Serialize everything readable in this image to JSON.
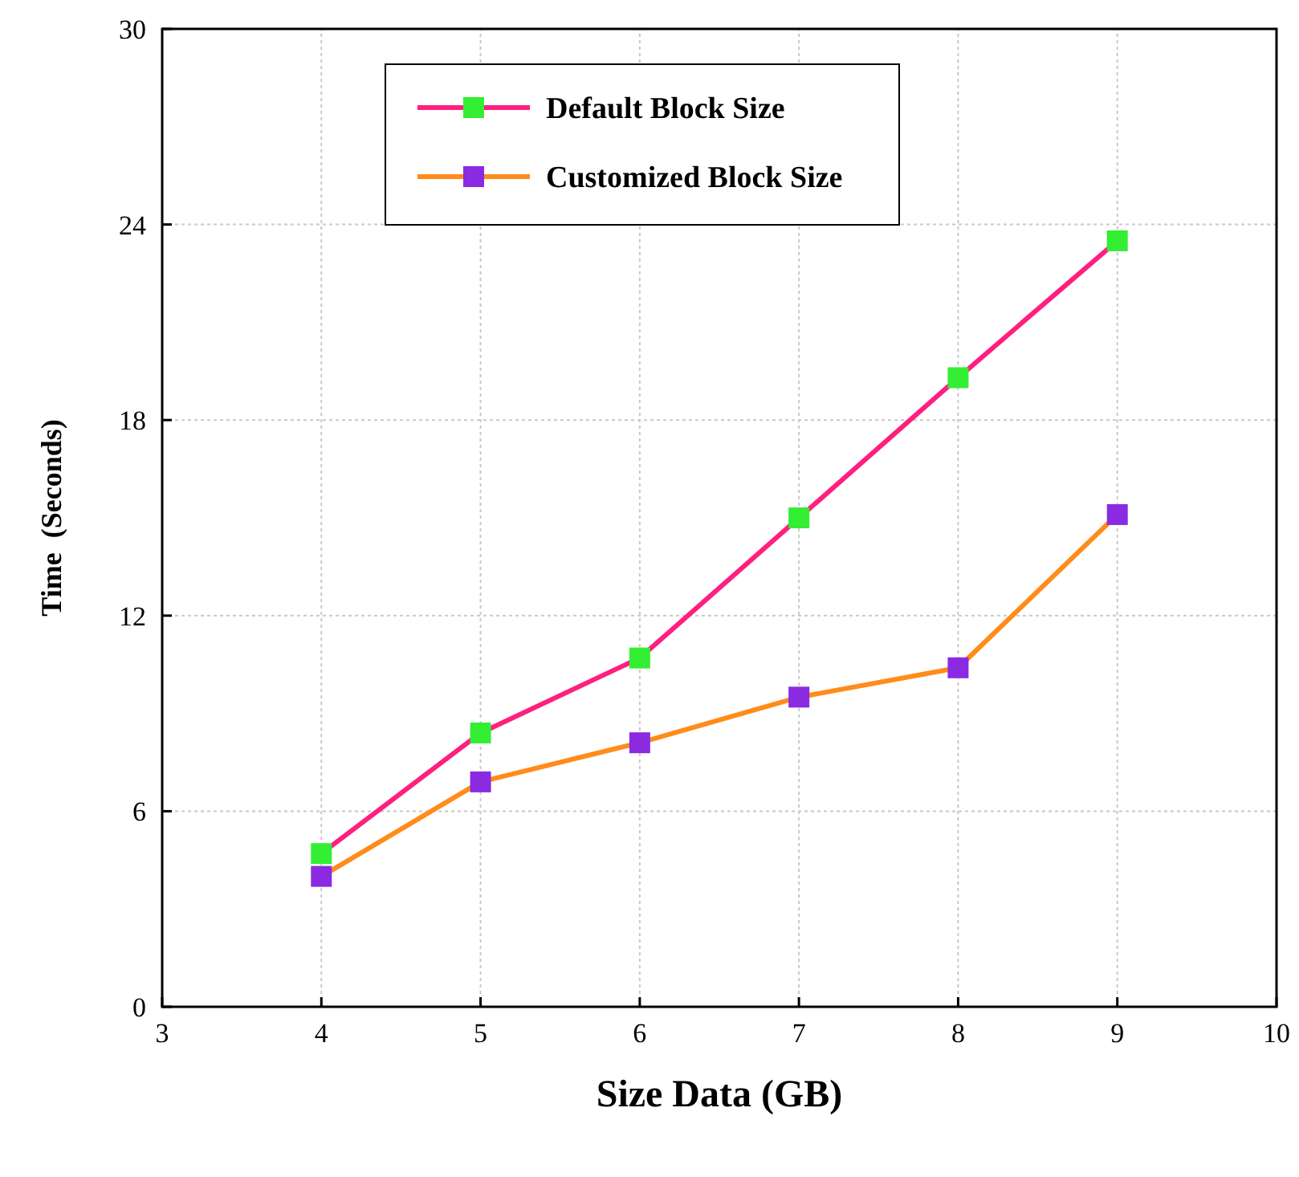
{
  "chart_data": {
    "type": "line",
    "xlabel": "Size Data (GB)",
    "ylabel": "Time  (Seconds)",
    "x": [
      4,
      5,
      6,
      7,
      8,
      9
    ],
    "series": [
      {
        "name": "Default Block Size",
        "color": "#ff1f7f",
        "colors": [
          "#33ee33",
          "#33ee33",
          "#33ee33",
          "#33ee33",
          "#33ee33",
          "#33ee33"
        ],
        "values": [
          4.7,
          8.4,
          10.7,
          15.0,
          19.3,
          23.5
        ]
      },
      {
        "name": "Customized Block Size",
        "color": "#ff8c1a",
        "colors": [
          "#8a2be2",
          "#8a2be2",
          "#8a2be2",
          "#8a2be2",
          "#8a2be2",
          "#8a2be2"
        ],
        "values": [
          4.0,
          6.9,
          8.1,
          9.5,
          10.4,
          15.1
        ]
      }
    ],
    "xlim": [
      3,
      10
    ],
    "xticks": [
      3,
      4,
      5,
      6,
      7,
      8,
      9,
      10
    ],
    "ylim": [
      0,
      30
    ],
    "yticks": [
      0,
      6,
      12,
      18,
      24,
      30
    ],
    "grid": true,
    "legend": "top",
    "marker": "square",
    "line_style": "solid"
  }
}
